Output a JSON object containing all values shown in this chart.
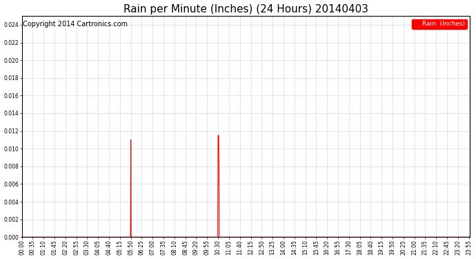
{
  "title": "Rain per Minute (Inches) (24 Hours) 20140403",
  "copyright_text": "Copyright 2014 Cartronics.com",
  "legend_label": "Rain  (Inches)",
  "ylim": [
    0.0,
    0.025
  ],
  "yticks": [
    0.0,
    0.002,
    0.004,
    0.006,
    0.008,
    0.01,
    0.012,
    0.014,
    0.016,
    0.018,
    0.02,
    0.022,
    0.024
  ],
  "line_color": "#ff0000",
  "legend_bg": "#ff0000",
  "legend_text_color": "#ffffff",
  "grid_color": "#cccccc",
  "bg_color": "#ffffff",
  "total_minutes": 1440,
  "spike1_minute": 350,
  "spike1_value": 0.011,
  "spike2_minutes": [
    630,
    631,
    632,
    633
  ],
  "spike2_values": [
    0.0115,
    0.0115,
    0.0115,
    0.008
  ],
  "xtick_step": 35,
  "title_fontsize": 11,
  "tick_fontsize": 5.5,
  "copyright_fontsize": 7
}
